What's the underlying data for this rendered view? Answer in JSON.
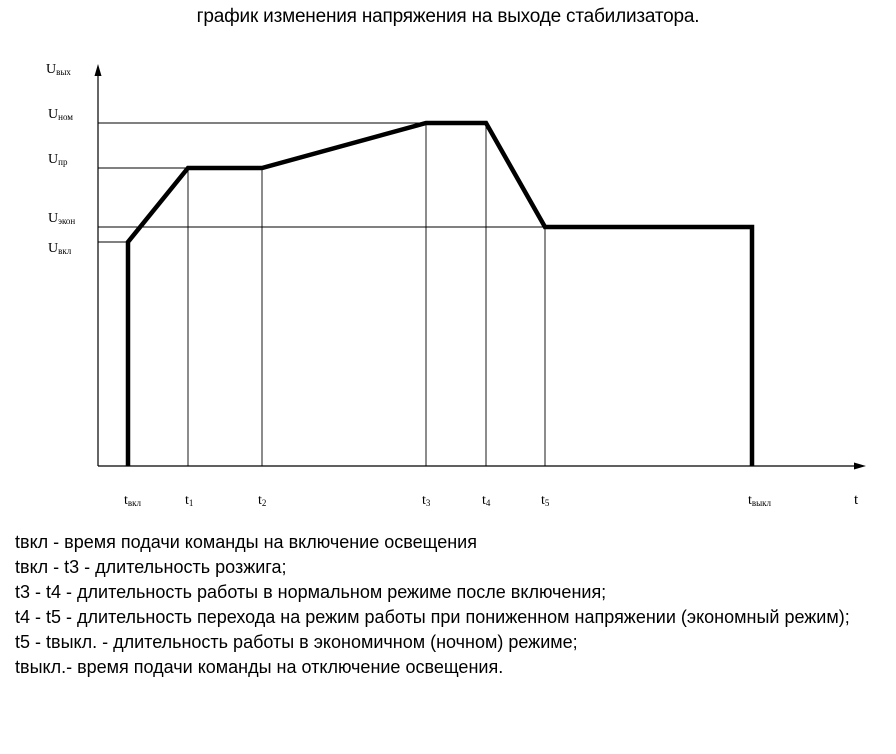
{
  "title": "график изменения напряжения на выходе стабилизатора.",
  "axes": {
    "y": {
      "sym": "U",
      "sub": "вых"
    },
    "x": {
      "sym": "t"
    }
  },
  "levels": [
    {
      "sym": "U",
      "sub": "ном"
    },
    {
      "sym": "U",
      "sub": "пр"
    },
    {
      "sym": "U",
      "sub": "экон"
    },
    {
      "sym": "U",
      "sub": "вкл"
    }
  ],
  "times": [
    {
      "sym": "t",
      "sub": "вкл"
    },
    {
      "sym": "t",
      "sub": "1"
    },
    {
      "sym": "t",
      "sub": "2"
    },
    {
      "sym": "t",
      "sub": "3"
    },
    {
      "sym": "t",
      "sub": "4"
    },
    {
      "sym": "t",
      "sub": "5"
    },
    {
      "sym": "t",
      "sub": "выкл"
    }
  ],
  "legend": [
    "tвкл - время подачи команды на включение освещения",
    "tвкл - t3 - длительность розжига;",
    "t3 - t4 - длительность работы в нормальном режиме после включения;",
    "t4 - t5 - длительность перехода на режим работы при пониженном напряжении (экономный режим);",
    "t5 - tвыкл. - длительность работы в экономичном (ночном) режиме;",
    "tвыкл.- время подачи команды на отключение освещения."
  ]
}
